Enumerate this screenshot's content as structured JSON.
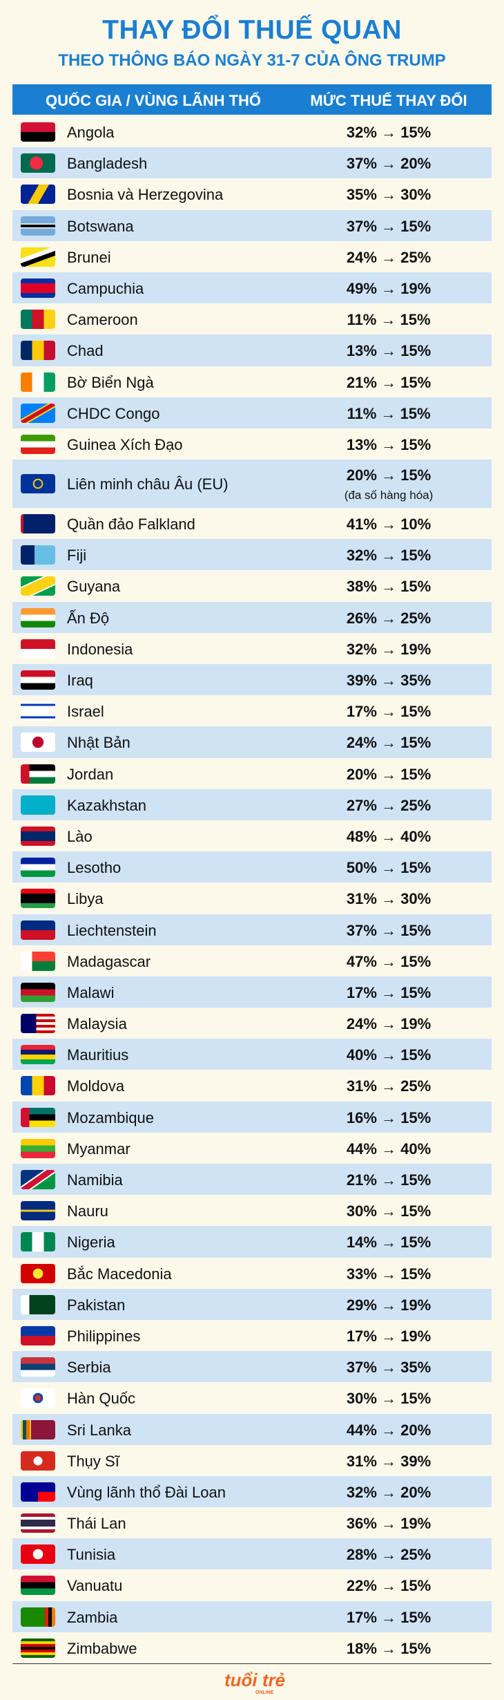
{
  "header": {
    "title": "THAY ĐỔI THUẾ QUAN",
    "subtitle": "THEO THÔNG BÁO NGÀY 31-7 CỦA ÔNG TRUMP"
  },
  "table": {
    "columns": [
      "QUỐC GIA / VÙNG LÃNH THỔ",
      "MỨC THUẾ THAY ĐỔI"
    ],
    "rows": [
      {
        "country": "Angola",
        "rate": "32% → 15%"
      },
      {
        "country": "Bangladesh",
        "rate": "37% → 20%"
      },
      {
        "country": "Bosnia và Herzegovina",
        "rate": "35% → 30%"
      },
      {
        "country": "Botswana",
        "rate": "37% → 15%"
      },
      {
        "country": "Brunei",
        "rate": "24% → 25%"
      },
      {
        "country": "Campuchia",
        "rate": "49% → 19%"
      },
      {
        "country": "Cameroon",
        "rate": "11% → 15%"
      },
      {
        "country": "Chad",
        "rate": "13% → 15%"
      },
      {
        "country": "Bờ Biển Ngà",
        "rate": "21% → 15%"
      },
      {
        "country": "CHDC Congo",
        "rate": "11% → 15%"
      },
      {
        "country": "Guinea Xích Đạo",
        "rate": "13% → 15%"
      },
      {
        "country": "Liên minh châu Âu (EU)",
        "rate": "20% → 15%",
        "note": "(đa số hàng hóa)"
      },
      {
        "country": "Quần đảo Falkland",
        "rate": "41% → 10%"
      },
      {
        "country": "Fiji",
        "rate": "32% → 15%"
      },
      {
        "country": "Guyana",
        "rate": "38% → 15%"
      },
      {
        "country": "Ấn Độ",
        "rate": "26% → 25%"
      },
      {
        "country": "Indonesia",
        "rate": "32% → 19%"
      },
      {
        "country": "Iraq",
        "rate": "39% → 35%"
      },
      {
        "country": "Israel",
        "rate": "17% → 15%"
      },
      {
        "country": "Nhật Bản",
        "rate": "24% → 15%"
      },
      {
        "country": "Jordan",
        "rate": "20% → 15%"
      },
      {
        "country": "Kazakhstan",
        "rate": "27% → 25%"
      },
      {
        "country": "Lào",
        "rate": "48% → 40%"
      },
      {
        "country": "Lesotho",
        "rate": "50% → 15%"
      },
      {
        "country": "Libya",
        "rate": "31% → 30%"
      },
      {
        "country": "Liechtenstein",
        "rate": "37% → 15%"
      },
      {
        "country": "Madagascar",
        "rate": "47% → 15%"
      },
      {
        "country": "Malawi",
        "rate": "17% → 15%"
      },
      {
        "country": "Malaysia",
        "rate": "24% → 19%"
      },
      {
        "country": "Mauritius",
        "rate": "40% → 15%"
      },
      {
        "country": "Moldova",
        "rate": "31% → 25%"
      },
      {
        "country": "Mozambique",
        "rate": "16% → 15%"
      },
      {
        "country": "Myanmar",
        "rate": "44% → 40%"
      },
      {
        "country": "Namibia",
        "rate": "21% → 15%"
      },
      {
        "country": "Nauru",
        "rate": "30% → 15%"
      },
      {
        "country": "Nigeria",
        "rate": "14% → 15%"
      },
      {
        "country": "Bắc Macedonia",
        "rate": "33% → 15%"
      },
      {
        "country": "Pakistan",
        "rate": "29% → 19%"
      },
      {
        "country": "Philippines",
        "rate": "17% → 19%"
      },
      {
        "country": "Serbia",
        "rate": "37% → 35%"
      },
      {
        "country": "Hàn Quốc",
        "rate": "30% → 15%"
      },
      {
        "country": "Sri Lanka",
        "rate": "44% → 20%"
      },
      {
        "country": "Thụy Sĩ",
        "rate": "31% → 39%"
      },
      {
        "country": "Vùng lãnh thổ Đài Loan",
        "rate": "32% → 20%"
      },
      {
        "country": "Thái Lan",
        "rate": "36% → 19%"
      },
      {
        "country": "Tunisia",
        "rate": "28% → 25%"
      },
      {
        "country": "Vanuatu",
        "rate": "22% → 15%"
      },
      {
        "country": "Zambia",
        "rate": "17% → 15%"
      },
      {
        "country": "Zimbabwe",
        "rate": "18% → 15%"
      }
    ]
  },
  "footer": {
    "logo": "tuổi trẻ",
    "logo_sub": "ONLINE"
  }
}
